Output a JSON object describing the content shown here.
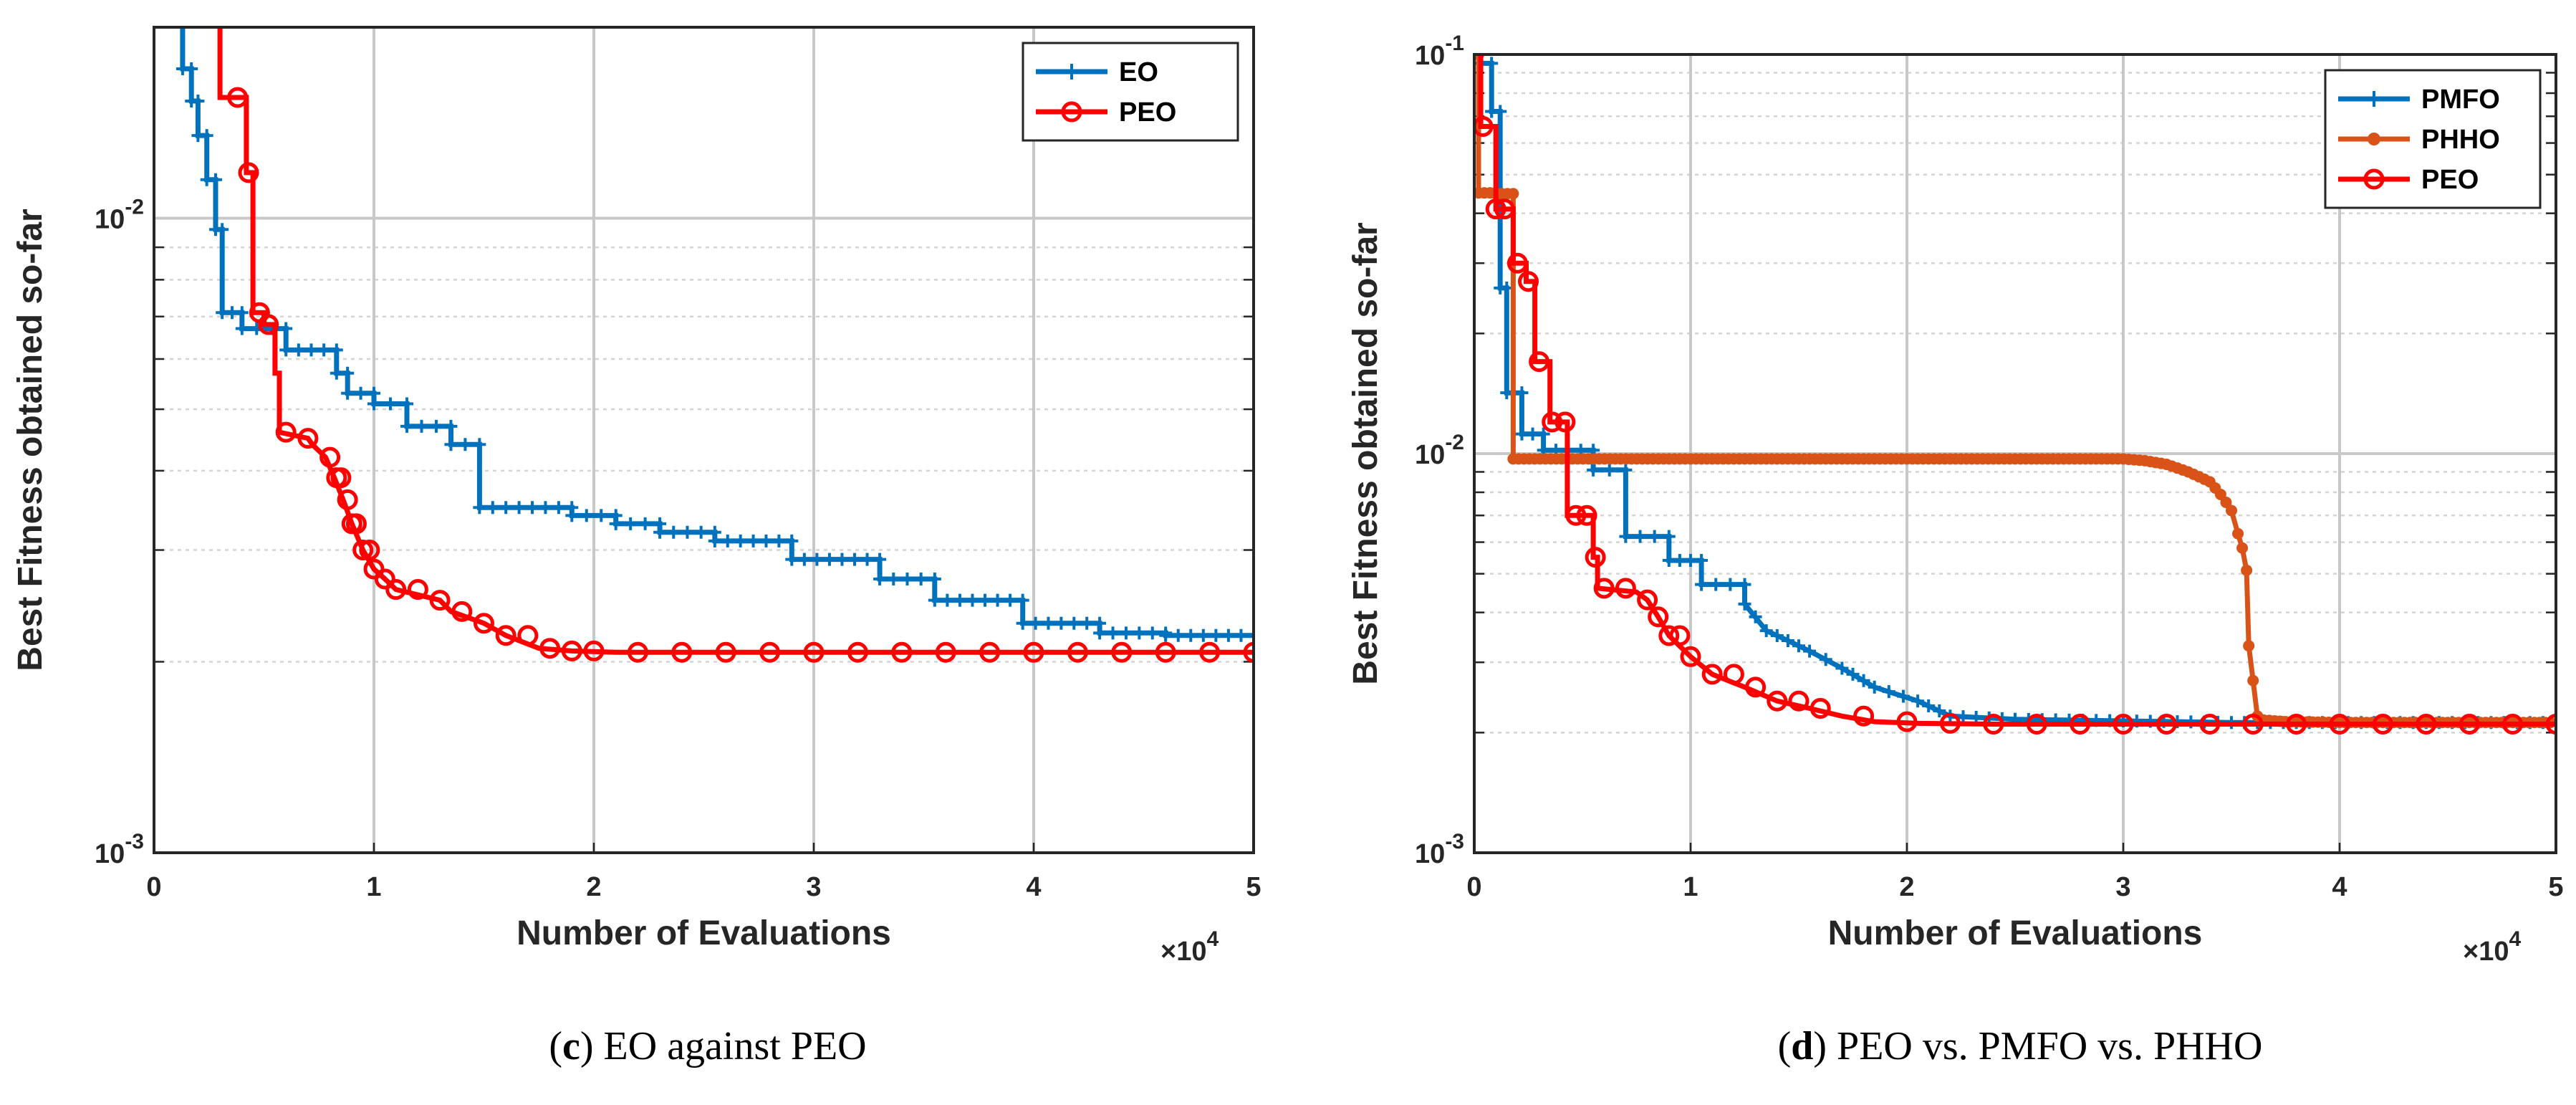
{
  "chart_data": [
    {
      "type": "line",
      "panel": "c",
      "caption_letter": "c",
      "caption_text": " EO against PEO",
      "caption_open": "(",
      "caption_close": ")",
      "xlabel": "Number of Evaluations",
      "ylabel": "Best Fitness obtained so-far",
      "x_multiplier": "×10",
      "x_multiplier_exp": "4",
      "x_ticks": [
        "0",
        "1",
        "2",
        "3",
        "4",
        "5"
      ],
      "x_tick_values": [
        0,
        1,
        2,
        3,
        4,
        5
      ],
      "xlim": [
        0,
        5
      ],
      "y_scale": "log",
      "ylim": [
        0.001,
        0.02
      ],
      "y_ticks": [
        {
          "base": "10",
          "exp": "-3",
          "value": 0.001
        },
        {
          "base": "10",
          "exp": "-2",
          "value": 0.01
        }
      ],
      "grid": true,
      "legend_position": "top-right",
      "series": [
        {
          "name": "EO",
          "color": "#0072BD",
          "marker": "plus",
          "x": [
            0.13,
            0.13,
            0.17,
            0.17,
            0.2,
            0.2,
            0.24,
            0.24,
            0.28,
            0.28,
            0.31,
            0.31,
            0.4,
            0.4,
            0.6,
            0.6,
            0.83,
            0.83,
            0.88,
            0.88,
            1.0,
            1.0,
            1.15,
            1.15,
            1.35,
            1.35,
            1.48,
            1.48,
            1.9,
            1.9,
            2.1,
            2.1,
            2.3,
            2.3,
            2.55,
            2.55,
            2.9,
            2.9,
            3.3,
            3.3,
            3.55,
            3.55,
            3.95,
            3.95,
            4.3,
            4.3,
            4.6,
            4.6,
            5.0
          ],
          "y": [
            0.02,
            0.0172,
            0.0172,
            0.0153,
            0.0153,
            0.0135,
            0.0135,
            0.0115,
            0.0115,
            0.0096,
            0.0096,
            0.0071,
            0.0071,
            0.0067,
            0.0067,
            0.0062,
            0.0062,
            0.0057,
            0.0057,
            0.0053,
            0.0053,
            0.0051,
            0.0051,
            0.0047,
            0.0047,
            0.0044,
            0.0044,
            0.0035,
            0.0035,
            0.0034,
            0.0034,
            0.0033,
            0.0033,
            0.0032,
            0.0032,
            0.0031,
            0.0031,
            0.0029,
            0.0029,
            0.0027,
            0.0027,
            0.0025,
            0.0025,
            0.0023,
            0.0023,
            0.00222,
            0.00222,
            0.0022,
            0.0022
          ]
        },
        {
          "name": "PEO",
          "color": "#FF0000",
          "marker": "circle",
          "x": [
            0.3,
            0.3,
            0.42,
            0.42,
            0.45,
            0.45,
            0.5,
            0.5,
            0.55,
            0.55,
            0.57,
            0.57,
            0.7,
            0.72,
            0.78,
            0.82,
            0.86,
            0.9,
            0.95,
            1.0,
            1.05,
            1.1,
            1.3,
            1.35,
            1.5,
            1.6,
            1.75,
            1.9,
            2.1,
            2.5,
            3.0,
            4.0,
            5.0
          ],
          "y": [
            0.02,
            0.0155,
            0.0155,
            0.0118,
            0.0118,
            0.0071,
            0.0071,
            0.0068,
            0.0068,
            0.0057,
            0.0057,
            0.0046,
            0.0045,
            0.0044,
            0.0042,
            0.0039,
            0.0036,
            0.0033,
            0.003,
            0.0028,
            0.0027,
            0.0026,
            0.0025,
            0.0024,
            0.0023,
            0.0022,
            0.0021,
            0.00208,
            0.00207,
            0.00207,
            0.00207,
            0.00207,
            0.00207
          ],
          "marker_x": [
            0.38,
            0.43,
            0.48,
            0.52,
            0.6,
            0.7,
            0.8,
            0.83,
            0.85,
            0.88,
            0.9,
            0.92,
            0.95,
            0.98,
            1.0,
            1.05,
            1.1,
            1.2,
            1.3,
            1.4,
            1.5,
            1.6,
            1.7,
            1.8,
            1.9,
            2.0,
            2.2,
            2.4,
            2.6,
            2.8,
            3.0,
            3.2,
            3.4,
            3.6,
            3.8,
            4.0,
            4.2,
            4.4,
            4.6,
            4.8,
            5.0
          ]
        }
      ]
    },
    {
      "type": "line",
      "panel": "d",
      "caption_letter": "d",
      "caption_text": " PEO vs. PMFO vs. PHHO",
      "caption_open": "(",
      "caption_close": ")",
      "xlabel": "Number of Evaluations",
      "ylabel": "Best Fitness obtained so-far",
      "x_multiplier": "×10",
      "x_multiplier_exp": "4",
      "x_ticks": [
        "0",
        "1",
        "2",
        "3",
        "4",
        "5"
      ],
      "x_tick_values": [
        0,
        1,
        2,
        3,
        4,
        5
      ],
      "xlim": [
        0,
        5
      ],
      "y_scale": "log",
      "ylim": [
        0.001,
        0.1
      ],
      "y_ticks": [
        {
          "base": "10",
          "exp": "-3",
          "value": 0.001
        },
        {
          "base": "10",
          "exp": "-2",
          "value": 0.01
        },
        {
          "base": "10",
          "exp": "-1",
          "value": 0.1
        }
      ],
      "grid": true,
      "legend_position": "top-right",
      "series": [
        {
          "name": "PMFO",
          "color": "#0072BD",
          "marker": "plus",
          "x": [
            0.02,
            0.02,
            0.08,
            0.08,
            0.12,
            0.12,
            0.15,
            0.15,
            0.22,
            0.22,
            0.32,
            0.32,
            0.55,
            0.55,
            0.7,
            0.7,
            0.9,
            0.9,
            1.05,
            1.05,
            1.25,
            1.25,
            1.35,
            1.45,
            1.55,
            1.7,
            1.85,
            2.05,
            2.2,
            2.5,
            3.0,
            3.5,
            5.0
          ],
          "y": [
            0.1,
            0.095,
            0.095,
            0.072,
            0.072,
            0.026,
            0.026,
            0.0142,
            0.0142,
            0.0112,
            0.0112,
            0.0102,
            0.0102,
            0.0091,
            0.0091,
            0.0062,
            0.0062,
            0.0054,
            0.0054,
            0.0047,
            0.0047,
            0.0042,
            0.0036,
            0.0034,
            0.0032,
            0.0029,
            0.0026,
            0.0024,
            0.0022,
            0.00216,
            0.00214,
            0.00212,
            0.00212
          ]
        },
        {
          "name": "PHHO",
          "color": "#D95319",
          "marker": "dot",
          "x": [
            0.02,
            0.02,
            0.1,
            0.1,
            0.18,
            0.18,
            1.0,
            2.0,
            3.0,
            3.1,
            3.2,
            3.3,
            3.4,
            3.45,
            3.5,
            3.53,
            3.55,
            3.57,
            3.58,
            3.6,
            3.62,
            3.65,
            3.75,
            4.0,
            5.0
          ],
          "y": [
            0.1,
            0.045,
            0.045,
            0.0448,
            0.0448,
            0.0097,
            0.0097,
            0.0097,
            0.0097,
            0.0096,
            0.0094,
            0.009,
            0.0085,
            0.0079,
            0.0072,
            0.0063,
            0.0058,
            0.0051,
            0.0033,
            0.0027,
            0.0022,
            0.00215,
            0.00213,
            0.00212,
            0.00212
          ]
        },
        {
          "name": "PEO",
          "color": "#FF0000",
          "marker": "circle",
          "x": [
            0.03,
            0.03,
            0.1,
            0.1,
            0.18,
            0.18,
            0.24,
            0.24,
            0.28,
            0.28,
            0.35,
            0.35,
            0.43,
            0.43,
            0.55,
            0.55,
            0.57,
            0.57,
            0.75,
            0.8,
            0.85,
            0.9,
            1.0,
            1.1,
            1.25,
            1.4,
            1.55,
            1.7,
            1.85,
            2.05,
            2.4,
            3.0,
            4.0,
            5.0
          ],
          "y": [
            0.1,
            0.066,
            0.066,
            0.041,
            0.041,
            0.03,
            0.03,
            0.027,
            0.027,
            0.017,
            0.017,
            0.012,
            0.012,
            0.007,
            0.007,
            0.0055,
            0.0055,
            0.0046,
            0.0045,
            0.0043,
            0.0039,
            0.0035,
            0.0031,
            0.0028,
            0.0026,
            0.0024,
            0.0023,
            0.0022,
            0.00213,
            0.00211,
            0.0021,
            0.0021,
            0.0021,
            0.0021
          ],
          "marker_x": [
            0.04,
            0.1,
            0.14,
            0.2,
            0.25,
            0.3,
            0.36,
            0.42,
            0.47,
            0.52,
            0.56,
            0.6,
            0.7,
            0.8,
            0.85,
            0.9,
            0.95,
            1.0,
            1.1,
            1.2,
            1.3,
            1.4,
            1.5,
            1.6,
            1.8,
            2.0,
            2.2,
            2.4,
            2.6,
            2.8,
            3.0,
            3.2,
            3.4,
            3.6,
            3.8,
            4.0,
            4.2,
            4.4,
            4.6,
            4.8,
            5.0
          ]
        }
      ]
    }
  ]
}
